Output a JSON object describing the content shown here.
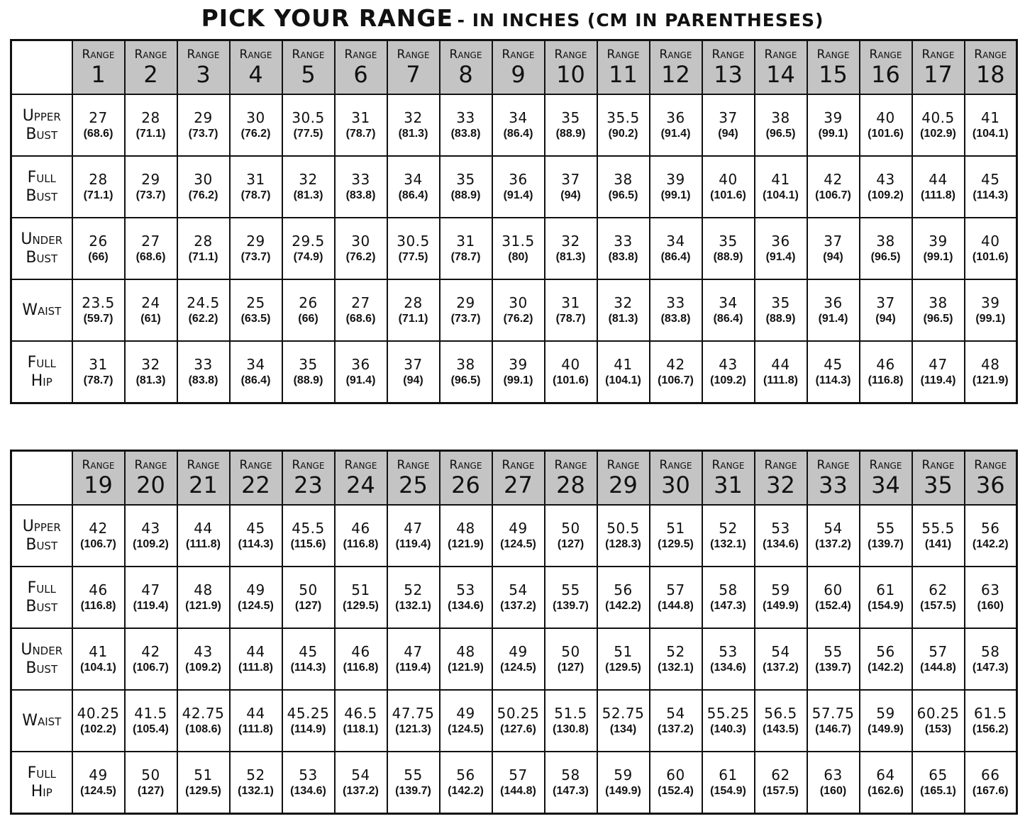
{
  "title": {
    "main": "PICK YOUR RANGE",
    "sub": "- IN INCHES (CM IN PARENTHESES)"
  },
  "range_label": "Range",
  "tables": [
    {
      "ranges": [
        "1",
        "2",
        "3",
        "4",
        "5",
        "6",
        "7",
        "8",
        "9",
        "10",
        "11",
        "12",
        "13",
        "14",
        "15",
        "16",
        "17",
        "18"
      ],
      "rows": [
        {
          "label": [
            "Upper",
            "Bust"
          ],
          "values": [
            [
              "27",
              "(68.6)"
            ],
            [
              "28",
              "(71.1)"
            ],
            [
              "29",
              "(73.7)"
            ],
            [
              "30",
              "(76.2)"
            ],
            [
              "30.5",
              "(77.5)"
            ],
            [
              "31",
              "(78.7)"
            ],
            [
              "32",
              "(81.3)"
            ],
            [
              "33",
              "(83.8)"
            ],
            [
              "34",
              "(86.4)"
            ],
            [
              "35",
              "(88.9)"
            ],
            [
              "35.5",
              "(90.2)"
            ],
            [
              "36",
              "(91.4)"
            ],
            [
              "37",
              "(94)"
            ],
            [
              "38",
              "(96.5)"
            ],
            [
              "39",
              "(99.1)"
            ],
            [
              "40",
              "(101.6)"
            ],
            [
              "40.5",
              "(102.9)"
            ],
            [
              "41",
              "(104.1)"
            ]
          ]
        },
        {
          "label": [
            "Full",
            "Bust"
          ],
          "values": [
            [
              "28",
              "(71.1)"
            ],
            [
              "29",
              "(73.7)"
            ],
            [
              "30",
              "(76.2)"
            ],
            [
              "31",
              "(78.7)"
            ],
            [
              "32",
              "(81.3)"
            ],
            [
              "33",
              "(83.8)"
            ],
            [
              "34",
              "(86.4)"
            ],
            [
              "35",
              "(88.9)"
            ],
            [
              "36",
              "(91.4)"
            ],
            [
              "37",
              "(94)"
            ],
            [
              "38",
              "(96.5)"
            ],
            [
              "39",
              "(99.1)"
            ],
            [
              "40",
              "(101.6)"
            ],
            [
              "41",
              "(104.1)"
            ],
            [
              "42",
              "(106.7)"
            ],
            [
              "43",
              "(109.2)"
            ],
            [
              "44",
              "(111.8)"
            ],
            [
              "45",
              "(114.3)"
            ]
          ]
        },
        {
          "label": [
            "Under",
            "Bust"
          ],
          "values": [
            [
              "26",
              "(66)"
            ],
            [
              "27",
              "(68.6)"
            ],
            [
              "28",
              "(71.1)"
            ],
            [
              "29",
              "(73.7)"
            ],
            [
              "29.5",
              "(74.9)"
            ],
            [
              "30",
              "(76.2)"
            ],
            [
              "30.5",
              "(77.5)"
            ],
            [
              "31",
              "(78.7)"
            ],
            [
              "31.5",
              "(80)"
            ],
            [
              "32",
              "(81.3)"
            ],
            [
              "33",
              "(83.8)"
            ],
            [
              "34",
              "(86.4)"
            ],
            [
              "35",
              "(88.9)"
            ],
            [
              "36",
              "(91.4)"
            ],
            [
              "37",
              "(94)"
            ],
            [
              "38",
              "(96.5)"
            ],
            [
              "39",
              "(99.1)"
            ],
            [
              "40",
              "(101.6)"
            ]
          ]
        },
        {
          "label": [
            "Waist"
          ],
          "values": [
            [
              "23.5",
              "(59.7)"
            ],
            [
              "24",
              "(61)"
            ],
            [
              "24.5",
              "(62.2)"
            ],
            [
              "25",
              "(63.5)"
            ],
            [
              "26",
              "(66)"
            ],
            [
              "27",
              "(68.6)"
            ],
            [
              "28",
              "(71.1)"
            ],
            [
              "29",
              "(73.7)"
            ],
            [
              "30",
              "(76.2)"
            ],
            [
              "31",
              "(78.7)"
            ],
            [
              "32",
              "(81.3)"
            ],
            [
              "33",
              "(83.8)"
            ],
            [
              "34",
              "(86.4)"
            ],
            [
              "35",
              "(88.9)"
            ],
            [
              "36",
              "(91.4)"
            ],
            [
              "37",
              "(94)"
            ],
            [
              "38",
              "(96.5)"
            ],
            [
              "39",
              "(99.1)"
            ]
          ]
        },
        {
          "label": [
            "Full",
            "Hip"
          ],
          "values": [
            [
              "31",
              "(78.7)"
            ],
            [
              "32",
              "(81.3)"
            ],
            [
              "33",
              "(83.8)"
            ],
            [
              "34",
              "(86.4)"
            ],
            [
              "35",
              "(88.9)"
            ],
            [
              "36",
              "(91.4)"
            ],
            [
              "37",
              "(94)"
            ],
            [
              "38",
              "(96.5)"
            ],
            [
              "39",
              "(99.1)"
            ],
            [
              "40",
              "(101.6)"
            ],
            [
              "41",
              "(104.1)"
            ],
            [
              "42",
              "(106.7)"
            ],
            [
              "43",
              "(109.2)"
            ],
            [
              "44",
              "(111.8)"
            ],
            [
              "45",
              "(114.3)"
            ],
            [
              "46",
              "(116.8)"
            ],
            [
              "47",
              "(119.4)"
            ],
            [
              "48",
              "(121.9)"
            ]
          ]
        }
      ]
    },
    {
      "ranges": [
        "19",
        "20",
        "21",
        "22",
        "23",
        "24",
        "25",
        "26",
        "27",
        "28",
        "29",
        "30",
        "31",
        "32",
        "33",
        "34",
        "35",
        "36"
      ],
      "rows": [
        {
          "label": [
            "Upper",
            "Bust"
          ],
          "values": [
            [
              "42",
              "(106.7)"
            ],
            [
              "43",
              "(109.2)"
            ],
            [
              "44",
              "(111.8)"
            ],
            [
              "45",
              "(114.3)"
            ],
            [
              "45.5",
              "(115.6)"
            ],
            [
              "46",
              "(116.8)"
            ],
            [
              "47",
              "(119.4)"
            ],
            [
              "48",
              "(121.9)"
            ],
            [
              "49",
              "(124.5)"
            ],
            [
              "50",
              "(127)"
            ],
            [
              "50.5",
              "(128.3)"
            ],
            [
              "51",
              "(129.5)"
            ],
            [
              "52",
              "(132.1)"
            ],
            [
              "53",
              "(134.6)"
            ],
            [
              "54",
              "(137.2)"
            ],
            [
              "55",
              "(139.7)"
            ],
            [
              "55.5",
              "(141)"
            ],
            [
              "56",
              "(142.2)"
            ]
          ]
        },
        {
          "label": [
            "Full",
            "Bust"
          ],
          "values": [
            [
              "46",
              "(116.8)"
            ],
            [
              "47",
              "(119.4)"
            ],
            [
              "48",
              "(121.9)"
            ],
            [
              "49",
              "(124.5)"
            ],
            [
              "50",
              "(127)"
            ],
            [
              "51",
              "(129.5)"
            ],
            [
              "52",
              "(132.1)"
            ],
            [
              "53",
              "(134.6)"
            ],
            [
              "54",
              "(137.2)"
            ],
            [
              "55",
              "(139.7)"
            ],
            [
              "56",
              "(142.2)"
            ],
            [
              "57",
              "(144.8)"
            ],
            [
              "58",
              "(147.3)"
            ],
            [
              "59",
              "(149.9)"
            ],
            [
              "60",
              "(152.4)"
            ],
            [
              "61",
              "(154.9)"
            ],
            [
              "62",
              "(157.5)"
            ],
            [
              "63",
              "(160)"
            ]
          ]
        },
        {
          "label": [
            "Under",
            "Bust"
          ],
          "values": [
            [
              "41",
              "(104.1)"
            ],
            [
              "42",
              "(106.7)"
            ],
            [
              "43",
              "(109.2)"
            ],
            [
              "44",
              "(111.8)"
            ],
            [
              "45",
              "(114.3)"
            ],
            [
              "46",
              "(116.8)"
            ],
            [
              "47",
              "(119.4)"
            ],
            [
              "48",
              "(121.9)"
            ],
            [
              "49",
              "(124.5)"
            ],
            [
              "50",
              "(127)"
            ],
            [
              "51",
              "(129.5)"
            ],
            [
              "52",
              "(132.1)"
            ],
            [
              "53",
              "(134.6)"
            ],
            [
              "54",
              "(137.2)"
            ],
            [
              "55",
              "(139.7)"
            ],
            [
              "56",
              "(142.2)"
            ],
            [
              "57",
              "(144.8)"
            ],
            [
              "58",
              "(147.3)"
            ]
          ]
        },
        {
          "label": [
            "Waist"
          ],
          "values": [
            [
              "40.25",
              "(102.2)"
            ],
            [
              "41.5",
              "(105.4)"
            ],
            [
              "42.75",
              "(108.6)"
            ],
            [
              "44",
              "(111.8)"
            ],
            [
              "45.25",
              "(114.9)"
            ],
            [
              "46.5",
              "(118.1)"
            ],
            [
              "47.75",
              "(121.3)"
            ],
            [
              "49",
              "(124.5)"
            ],
            [
              "50.25",
              "(127.6)"
            ],
            [
              "51.5",
              "(130.8)"
            ],
            [
              "52.75",
              "(134)"
            ],
            [
              "54",
              "(137.2)"
            ],
            [
              "55.25",
              "(140.3)"
            ],
            [
              "56.5",
              "(143.5)"
            ],
            [
              "57.75",
              "(146.7)"
            ],
            [
              "59",
              "(149.9)"
            ],
            [
              "60.25",
              "(153)"
            ],
            [
              "61.5",
              "(156.2)"
            ]
          ]
        },
        {
          "label": [
            "Full",
            "Hip"
          ],
          "values": [
            [
              "49",
              "(124.5)"
            ],
            [
              "50",
              "(127)"
            ],
            [
              "51",
              "(129.5)"
            ],
            [
              "52",
              "(132.1)"
            ],
            [
              "53",
              "(134.6)"
            ],
            [
              "54",
              "(137.2)"
            ],
            [
              "55",
              "(139.7)"
            ],
            [
              "56",
              "(142.2)"
            ],
            [
              "57",
              "(144.8)"
            ],
            [
              "58",
              "(147.3)"
            ],
            [
              "59",
              "(149.9)"
            ],
            [
              "60",
              "(152.4)"
            ],
            [
              "61",
              "(154.9)"
            ],
            [
              "62",
              "(157.5)"
            ],
            [
              "63",
              "(160)"
            ],
            [
              "64",
              "(162.6)"
            ],
            [
              "65",
              "(165.1)"
            ],
            [
              "66",
              "(167.6)"
            ]
          ]
        }
      ]
    }
  ]
}
